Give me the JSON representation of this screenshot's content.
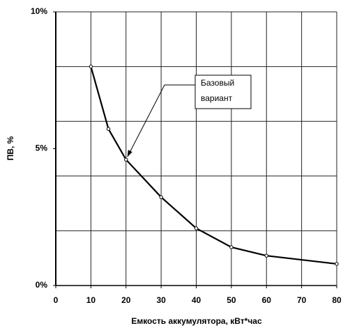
{
  "chart_data": {
    "type": "line",
    "x": [
      10,
      15,
      20,
      30,
      40,
      50,
      60,
      80
    ],
    "series": [
      {
        "color": "#000000",
        "values": [
          8.0,
          5.72,
          4.6,
          3.23,
          2.09,
          1.4,
          1.09,
          0.79
        ]
      }
    ],
    "xlim": [
      0,
      80
    ],
    "xticks": [
      0,
      10,
      20,
      30,
      40,
      50,
      60,
      70,
      80
    ],
    "ylim": [
      0,
      10
    ],
    "yticks": [
      {
        "value": 0,
        "label": "0%"
      },
      {
        "value": 5,
        "label": "5%"
      },
      {
        "value": 10,
        "label": "10%"
      }
    ],
    "ygrid": [
      2,
      4,
      6,
      8,
      10
    ],
    "grid": true,
    "xlabel": "Емкость аккумулятора, кВт*час",
    "ylabel": "ПВ, %",
    "annotation": {
      "lines": [
        "Базовый",
        "вариант"
      ]
    }
  }
}
